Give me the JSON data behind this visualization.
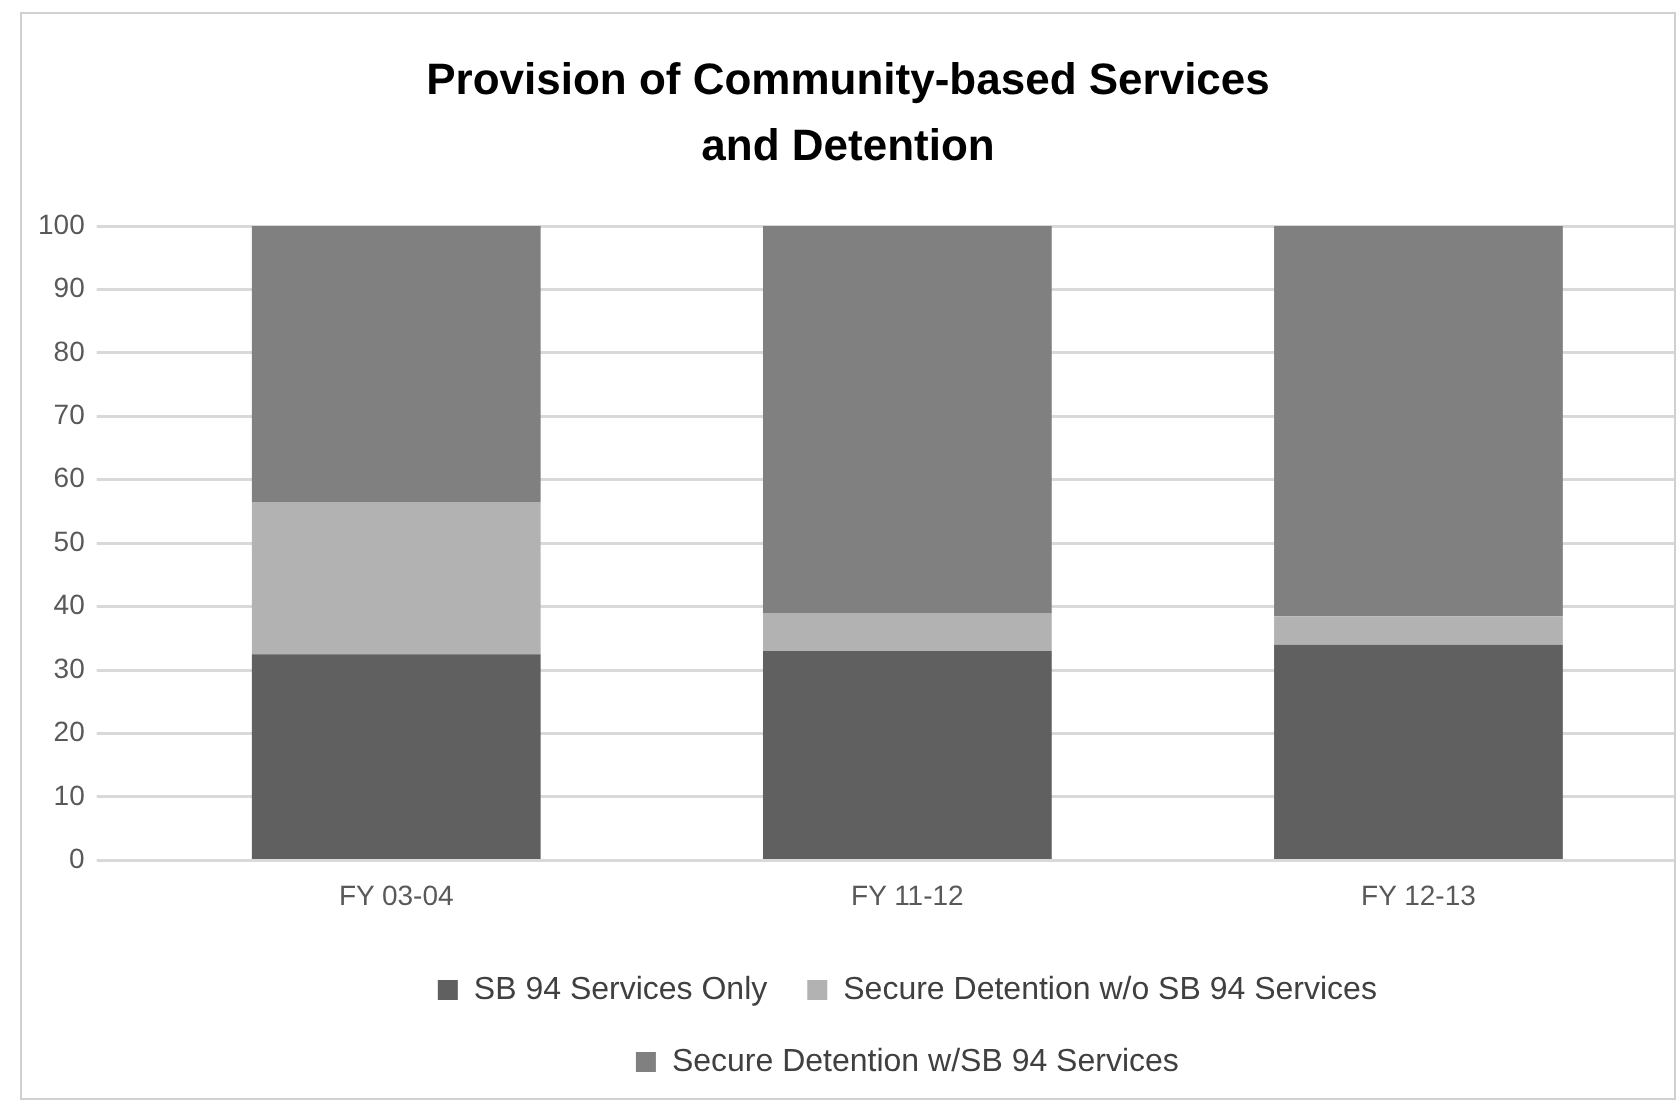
{
  "chart_data": {
    "type": "bar",
    "title": "Provision of Community-based Services and Detention",
    "categories": [
      "FY 03-04",
      "FY 11-12",
      "FY 12-13"
    ],
    "stacked": true,
    "series": [
      {
        "name": "SB 94 Services Only",
        "color": "#606060",
        "values": [
          32.5,
          33,
          34
        ]
      },
      {
        "name": "Secure Detention w/o SB 94 Services",
        "color": "#b2b2b2",
        "values": [
          24,
          6,
          4.5
        ]
      },
      {
        "name": "Secure Detention w/SB 94 Services",
        "color": "#808080",
        "values": [
          43.5,
          61,
          61.5
        ]
      }
    ],
    "ylim": [
      0,
      100
    ],
    "yticks": [
      0,
      10,
      20,
      30,
      40,
      50,
      60,
      70,
      80,
      90,
      100
    ],
    "grid": "y",
    "legend": "bottom"
  }
}
